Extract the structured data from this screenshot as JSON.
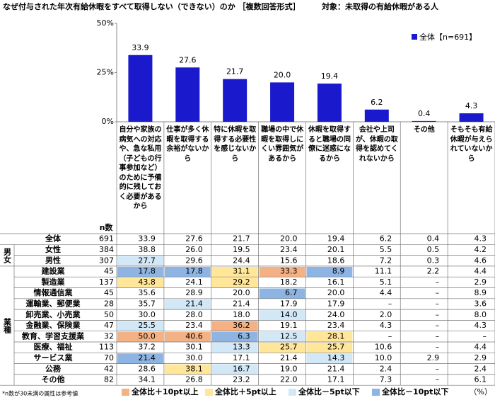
{
  "chart_data": {
    "type": "bar",
    "title": "なぜ付与された年次有給休暇をすべて取得しない（できない）のか ［複数回答形式］",
    "subtitle": "対象：未取得の有給休暇がある人",
    "categories": [
      "自分や家族の病気への対応や、急な私用（子どもの行事参加など）のために予備的に残しておく必要があるから",
      "仕事が多く休暇を取得する余裕がないから",
      "特に休暇を取得する必要性を感じないから",
      "職場の中で休暇を取得しにくい雰囲気があるから",
      "休暇を取得すると職場の同僚に迷惑になるから",
      "会社や上司が、休暇の取得を認めてくれないから",
      "その他",
      "そもそも有給休暇が与えられていないから"
    ],
    "series": [
      {
        "name": "全体【n=691】",
        "color": "#1a1acc",
        "values": [
          33.9,
          27.6,
          21.7,
          20.0,
          19.4,
          6.2,
          0.4,
          4.3
        ],
        "value_labels": [
          "33.9",
          "27.6",
          "21.7",
          "20.0",
          "19.4",
          "6.2",
          "0.4",
          "4.3"
        ]
      }
    ],
    "ylim": [
      0,
      50
    ],
    "yticks": [
      {
        "value": 0,
        "label": "0%"
      },
      {
        "value": 25,
        "label": "25%"
      },
      {
        "value": 50,
        "label": "50%"
      }
    ],
    "legend": "top-right"
  },
  "table": {
    "n_header": "n数",
    "total": {
      "label": "全体",
      "n": 691,
      "values": [
        "33.9",
        "27.6",
        "21.7",
        "20.0",
        "19.4",
        "6.2",
        "0.4",
        "4.3"
      ],
      "levels": [
        null,
        null,
        null,
        null,
        null,
        null,
        null,
        null
      ]
    },
    "groups": [
      {
        "label": "男女",
        "rows": [
          {
            "label": "女性",
            "n": 384,
            "values": [
              "38.8",
              "26.0",
              "19.5",
              "23.4",
              "20.1",
              "5.5",
              "0.5",
              "4.2"
            ],
            "levels": [
              null,
              null,
              null,
              null,
              null,
              null,
              null,
              null
            ]
          },
          {
            "label": "男性",
            "n": 307,
            "values": [
              "27.7",
              "29.6",
              "24.4",
              "15.6",
              "18.6",
              "7.2",
              "0.3",
              "4.6"
            ],
            "levels": [
              2,
              null,
              null,
              null,
              null,
              null,
              null,
              null
            ]
          }
        ]
      },
      {
        "label": "業種",
        "rows": [
          {
            "label": "建設業",
            "n": 45,
            "values": [
              "17.8",
              "17.8",
              "31.1",
              "33.3",
              "8.9",
              "11.1",
              "2.2",
              "4.4"
            ],
            "levels": [
              3,
              3,
              1,
              0,
              3,
              null,
              null,
              null
            ]
          },
          {
            "label": "製造業",
            "n": 137,
            "values": [
              "43.8",
              "24.1",
              "29.2",
              "18.2",
              "16.1",
              "5.1",
              "–",
              "2.9"
            ],
            "levels": [
              1,
              null,
              1,
              null,
              null,
              null,
              null,
              null
            ]
          },
          {
            "label": "情報通信業",
            "n": 45,
            "values": [
              "35.6",
              "28.9",
              "20.0",
              "6.7",
              "20.0",
              "4.4",
              "–",
              "8.9"
            ],
            "levels": [
              null,
              null,
              null,
              3,
              null,
              null,
              null,
              null
            ]
          },
          {
            "label": "運輸業、郵便業",
            "n": 28,
            "values": [
              "35.7",
              "21.4",
              "21.4",
              "17.9",
              "17.9",
              "–",
              "–",
              "3.6"
            ],
            "levels": [
              null,
              2,
              null,
              null,
              null,
              null,
              null,
              null
            ]
          },
          {
            "label": "卸売業、小売業",
            "n": 50,
            "values": [
              "30.0",
              "28.0",
              "18.0",
              "14.0",
              "24.0",
              "2.0",
              "–",
              "8.0"
            ],
            "levels": [
              null,
              null,
              null,
              2,
              null,
              null,
              null,
              null
            ]
          },
          {
            "label": "金融業、保険業",
            "n": 47,
            "values": [
              "25.5",
              "23.4",
              "36.2",
              "19.1",
              "23.4",
              "4.3",
              "–",
              "4.3"
            ],
            "levels": [
              2,
              null,
              0,
              null,
              null,
              null,
              null,
              null
            ]
          },
          {
            "label": "教育、学習支援業",
            "n": 32,
            "values": [
              "50.0",
              "40.6",
              "6.3",
              "12.5",
              "28.1",
              "–",
              "–",
              "–"
            ],
            "levels": [
              0,
              0,
              3,
              2,
              1,
              null,
              null,
              null
            ]
          },
          {
            "label": "医療、福祉",
            "n": 113,
            "values": [
              "37.2",
              "30.1",
              "13.3",
              "25.7",
              "25.7",
              "10.6",
              "–",
              "4.4"
            ],
            "levels": [
              null,
              null,
              2,
              1,
              1,
              null,
              null,
              null
            ]
          },
          {
            "label": "サービス業",
            "n": 70,
            "values": [
              "21.4",
              "30.0",
              "17.1",
              "21.4",
              "14.3",
              "10.0",
              "2.9",
              "2.9"
            ],
            "levels": [
              3,
              null,
              null,
              null,
              2,
              null,
              null,
              null
            ]
          },
          {
            "label": "公務",
            "n": 42,
            "values": [
              "28.6",
              "38.1",
              "16.7",
              "19.0",
              "21.4",
              "2.4",
              "–",
              "2.4"
            ],
            "levels": [
              null,
              1,
              2,
              null,
              null,
              null,
              null,
              null
            ]
          },
          {
            "label": "その他",
            "n": 82,
            "values": [
              "34.1",
              "26.8",
              "23.2",
              "22.0",
              "17.1",
              "7.3",
              "–",
              "6.1"
            ],
            "levels": [
              null,
              null,
              null,
              null,
              null,
              null,
              null,
              null
            ]
          }
        ]
      }
    ]
  },
  "highlight_legend": [
    {
      "name": "全体比＋10pt以上",
      "color": "#f4b183"
    },
    {
      "name": "全体比＋5pt以上",
      "color": "#ffe699"
    },
    {
      "name": "全体比－5pt以下",
      "color": "#d2e8f7"
    },
    {
      "name": "全体比－10pt以下",
      "color": "#8db4e2"
    }
  ],
  "footnote": "*n数が30未満の属性は参考値",
  "unit": "（%）"
}
